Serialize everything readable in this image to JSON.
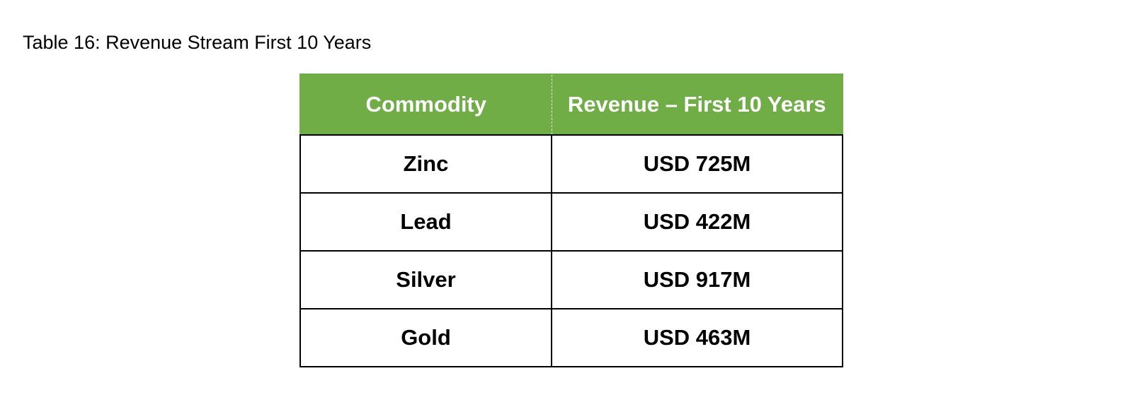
{
  "caption": "Table 16: Revenue Stream First 10 Years",
  "table": {
    "headers": [
      "Commodity",
      "Revenue – First 10 Years"
    ],
    "rows": [
      {
        "commodity": "Zinc",
        "revenue": "USD 725M"
      },
      {
        "commodity": "Lead",
        "revenue": "USD 422M"
      },
      {
        "commodity": "Silver",
        "revenue": "USD 917M"
      },
      {
        "commodity": "Gold",
        "revenue": "USD 463M"
      }
    ]
  },
  "colors": {
    "header_background": "#70ad47",
    "header_text": "#ffffff",
    "border": "#000000"
  }
}
